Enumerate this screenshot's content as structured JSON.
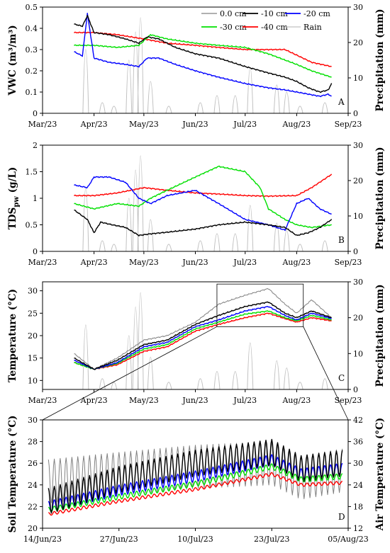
{
  "legend": {
    "position": "top-right of panel A",
    "entries": [
      {
        "label": "0.0 cm",
        "color": "#808080"
      },
      {
        "label": "-10 cm",
        "color": "#000000"
      },
      {
        "label": "-20 cm",
        "color": "#0000ff"
      },
      {
        "label": "-30 cm",
        "color": "#00e000"
      },
      {
        "label": "-40 cm",
        "color": "#ff0000"
      },
      {
        "label": "Rain",
        "color": "#c0c0c0"
      }
    ]
  },
  "chart_data": [
    {
      "panel": "A",
      "type": "line",
      "ylabel": "VWC (m³/m³)",
      "y2label": "Precipitation (mm)",
      "x_ticks": [
        "Mar/23",
        "Apr/23",
        "May/23",
        "Jun/23",
        "Jul/23",
        "Aug/23",
        "Sep/23"
      ],
      "xlim": [
        "2023-03-01",
        "2023-09-01"
      ],
      "ylim": [
        0,
        0.5
      ],
      "yticks": [
        "0",
        "0.1",
        "0.2",
        "0.3",
        "0.4",
        "0.5"
      ],
      "y2lim": [
        0,
        30
      ],
      "y2ticks": [
        "0",
        "10",
        "20",
        "30"
      ],
      "series": [
        {
          "name": "-10 cm",
          "x": [
            "2023-03-20",
            "2023-03-25",
            "2023-03-28",
            "2023-04-01",
            "2023-04-10",
            "2023-04-20",
            "2023-04-28",
            "2023-05-03",
            "2023-05-10",
            "2023-05-20",
            "2023-06-01",
            "2023-06-15",
            "2023-07-01",
            "2023-07-15",
            "2023-07-25",
            "2023-08-01",
            "2023-08-08",
            "2023-08-15",
            "2023-08-20",
            "2023-08-22"
          ],
          "y": [
            0.42,
            0.41,
            0.46,
            0.38,
            0.37,
            0.35,
            0.33,
            0.36,
            0.35,
            0.31,
            0.28,
            0.26,
            0.22,
            0.19,
            0.17,
            0.15,
            0.12,
            0.1,
            0.11,
            0.14
          ]
        },
        {
          "name": "-20 cm",
          "x": [
            "2023-03-20",
            "2023-03-25",
            "2023-03-28",
            "2023-04-01",
            "2023-04-10",
            "2023-04-20",
            "2023-04-28",
            "2023-05-03",
            "2023-05-10",
            "2023-05-20",
            "2023-06-01",
            "2023-06-15",
            "2023-07-01",
            "2023-07-15",
            "2023-07-25",
            "2023-08-01",
            "2023-08-08",
            "2023-08-15",
            "2023-08-20",
            "2023-08-22"
          ],
          "y": [
            0.29,
            0.27,
            0.47,
            0.26,
            0.24,
            0.23,
            0.22,
            0.26,
            0.26,
            0.23,
            0.2,
            0.17,
            0.14,
            0.12,
            0.11,
            0.1,
            0.09,
            0.08,
            0.09,
            0.08
          ]
        },
        {
          "name": "-30 cm",
          "x": [
            "2023-03-20",
            "2023-04-01",
            "2023-04-15",
            "2023-04-28",
            "2023-05-05",
            "2023-05-15",
            "2023-06-01",
            "2023-06-15",
            "2023-07-01",
            "2023-07-15",
            "2023-08-01",
            "2023-08-10",
            "2023-08-22"
          ],
          "y": [
            0.32,
            0.32,
            0.31,
            0.32,
            0.37,
            0.35,
            0.33,
            0.32,
            0.31,
            0.28,
            0.23,
            0.2,
            0.17
          ]
        },
        {
          "name": "-40 cm",
          "x": [
            "2023-03-20",
            "2023-04-01",
            "2023-04-15",
            "2023-05-01",
            "2023-05-15",
            "2023-06-01",
            "2023-06-15",
            "2023-07-01",
            "2023-07-15",
            "2023-07-25",
            "2023-08-10",
            "2023-08-22"
          ],
          "y": [
            0.38,
            0.38,
            0.37,
            0.35,
            0.33,
            0.32,
            0.31,
            0.3,
            0.3,
            0.3,
            0.24,
            0.22
          ]
        }
      ],
      "rain": {
        "x": [
          "2023-03-27",
          "2023-04-06",
          "2023-04-13",
          "2023-04-22",
          "2023-04-26",
          "2023-04-29",
          "2023-05-05",
          "2023-05-16",
          "2023-06-04",
          "2023-06-14",
          "2023-06-25",
          "2023-07-04",
          "2023-07-20",
          "2023-07-26",
          "2023-08-03",
          "2023-08-18"
        ],
        "y": [
          18,
          3,
          2,
          15,
          23,
          27,
          9,
          2,
          3,
          5,
          5,
          13,
          8,
          6,
          2,
          3
        ]
      }
    },
    {
      "panel": "B",
      "type": "line",
      "ylabel": "TDSpw (g/L)",
      "y2label": "Precipitation (mm)",
      "x_ticks": [
        "Mar/23",
        "Apr/23",
        "May/23",
        "Jun/23",
        "Jul/23",
        "Aug/23",
        "Sep/23"
      ],
      "xlim": [
        "2023-03-01",
        "2023-09-01"
      ],
      "ylim": [
        0,
        2
      ],
      "yticks": [
        "0",
        "0.5",
        "1",
        "1.5",
        "2"
      ],
      "y2lim": [
        0,
        30
      ],
      "y2ticks": [
        "0",
        "10",
        "20",
        "30"
      ],
      "series": [
        {
          "name": "-10 cm",
          "x": [
            "2023-03-20",
            "2023-03-28",
            "2023-04-01",
            "2023-04-05",
            "2023-04-12",
            "2023-04-20",
            "2023-04-28",
            "2023-05-05",
            "2023-05-15",
            "2023-06-01",
            "2023-06-15",
            "2023-07-01",
            "2023-07-15",
            "2023-07-25",
            "2023-08-01",
            "2023-08-08",
            "2023-08-15",
            "2023-08-22"
          ],
          "y": [
            0.78,
            0.6,
            0.35,
            0.55,
            0.5,
            0.45,
            0.3,
            0.33,
            0.36,
            0.42,
            0.5,
            0.55,
            0.5,
            0.45,
            0.3,
            0.35,
            0.45,
            0.6
          ]
        },
        {
          "name": "-20 cm",
          "x": [
            "2023-03-20",
            "2023-03-28",
            "2023-04-01",
            "2023-04-10",
            "2023-04-20",
            "2023-04-28",
            "2023-05-05",
            "2023-05-15",
            "2023-06-01",
            "2023-06-15",
            "2023-07-01",
            "2023-07-15",
            "2023-07-25",
            "2023-08-01",
            "2023-08-08",
            "2023-08-15",
            "2023-08-22"
          ],
          "y": [
            1.25,
            1.2,
            1.4,
            1.4,
            1.3,
            1.0,
            0.9,
            1.05,
            1.15,
            0.9,
            0.6,
            0.5,
            0.4,
            0.9,
            1.0,
            0.8,
            0.7
          ]
        },
        {
          "name": "-30 cm",
          "x": [
            "2023-03-20",
            "2023-04-01",
            "2023-04-15",
            "2023-04-28",
            "2023-05-05",
            "2023-05-15",
            "2023-06-01",
            "2023-06-15",
            "2023-07-01",
            "2023-07-10",
            "2023-07-15",
            "2023-07-25",
            "2023-08-01",
            "2023-08-10",
            "2023-08-22"
          ],
          "y": [
            0.9,
            0.8,
            0.9,
            0.85,
            1.0,
            1.15,
            1.4,
            1.6,
            1.5,
            1.2,
            0.8,
            0.6,
            0.5,
            0.45,
            0.5
          ]
        },
        {
          "name": "-40 cm",
          "x": [
            "2023-03-20",
            "2023-04-01",
            "2023-04-15",
            "2023-05-01",
            "2023-05-15",
            "2023-06-01",
            "2023-06-15",
            "2023-07-01",
            "2023-07-15",
            "2023-08-01",
            "2023-08-10",
            "2023-08-22"
          ],
          "y": [
            1.05,
            1.05,
            1.1,
            1.2,
            1.15,
            1.1,
            1.08,
            1.05,
            1.04,
            1.05,
            1.2,
            1.45
          ]
        }
      ],
      "rain": {
        "x": [
          "2023-03-27",
          "2023-04-06",
          "2023-04-13",
          "2023-04-22",
          "2023-04-26",
          "2023-04-29",
          "2023-05-05",
          "2023-05-16",
          "2023-06-04",
          "2023-06-14",
          "2023-06-25",
          "2023-07-04",
          "2023-07-20",
          "2023-07-26",
          "2023-08-03",
          "2023-08-18"
        ],
        "y": [
          18,
          3,
          2,
          15,
          23,
          27,
          9,
          2,
          3,
          5,
          5,
          13,
          8,
          6,
          2,
          3
        ]
      }
    },
    {
      "panel": "C",
      "type": "line",
      "ylabel": "Temperature (°C)",
      "y2label": "Precipitation (mm)",
      "x_ticks": [
        "Mar/23",
        "Apr/23",
        "May/23",
        "Jun/23",
        "Jul/23",
        "Aug/23",
        "Sep/23"
      ],
      "xlim": [
        "2023-03-01",
        "2023-09-01"
      ],
      "ylim": [
        8,
        32
      ],
      "yticks": [
        "10",
        "15",
        "20",
        "25",
        "30"
      ],
      "y2lim": [
        0,
        30
      ],
      "y2ticks": [
        "0",
        "10",
        "20",
        "30"
      ],
      "series": [
        {
          "name": "0.0 cm",
          "x": [
            "2023-03-20",
            "2023-04-01",
            "2023-04-15",
            "2023-05-01",
            "2023-05-15",
            "2023-06-01",
            "2023-06-15",
            "2023-07-01",
            "2023-07-15",
            "2023-07-25",
            "2023-08-01",
            "2023-08-10",
            "2023-08-22"
          ],
          "y": [
            16,
            12.5,
            15,
            19,
            20,
            23,
            27,
            29,
            30.5,
            27,
            25,
            28,
            24
          ]
        },
        {
          "name": "-10 cm",
          "x": [
            "2023-03-20",
            "2023-04-01",
            "2023-04-15",
            "2023-05-01",
            "2023-05-15",
            "2023-06-01",
            "2023-06-15",
            "2023-07-01",
            "2023-07-15",
            "2023-07-25",
            "2023-08-01",
            "2023-08-10",
            "2023-08-22"
          ],
          "y": [
            15,
            12.5,
            14.5,
            18,
            19,
            22.5,
            24.5,
            26.5,
            27.5,
            25,
            24,
            25.5,
            24
          ]
        },
        {
          "name": "-20 cm",
          "x": [
            "2023-03-20",
            "2023-04-01",
            "2023-04-15",
            "2023-05-01",
            "2023-05-15",
            "2023-06-01",
            "2023-06-15",
            "2023-07-01",
            "2023-07-15",
            "2023-07-25",
            "2023-08-01",
            "2023-08-10",
            "2023-08-22"
          ],
          "y": [
            14.5,
            12.5,
            14,
            17.5,
            18.5,
            22,
            23.5,
            25.5,
            26.5,
            24.5,
            23.5,
            25,
            23.8
          ]
        },
        {
          "name": "-30 cm",
          "x": [
            "2023-03-20",
            "2023-04-01",
            "2023-04-15",
            "2023-05-01",
            "2023-05-15",
            "2023-06-01",
            "2023-06-15",
            "2023-07-01",
            "2023-07-15",
            "2023-07-25",
            "2023-08-01",
            "2023-08-10",
            "2023-08-22"
          ],
          "y": [
            14,
            12.5,
            13.8,
            17,
            18,
            21.5,
            23,
            24.8,
            25.5,
            24,
            23.3,
            24.5,
            23.5
          ]
        },
        {
          "name": "-40 cm",
          "x": [
            "2023-03-20",
            "2023-04-01",
            "2023-04-15",
            "2023-05-01",
            "2023-05-15",
            "2023-06-01",
            "2023-06-15",
            "2023-07-01",
            "2023-07-15",
            "2023-07-25",
            "2023-08-01",
            "2023-08-10",
            "2023-08-22"
          ],
          "y": [
            14,
            12.5,
            13.5,
            16.5,
            17.5,
            21,
            22.5,
            24,
            25,
            23.8,
            23,
            24,
            23.3
          ]
        }
      ],
      "rain": {
        "x": [
          "2023-03-27",
          "2023-04-06",
          "2023-04-13",
          "2023-04-22",
          "2023-04-26",
          "2023-04-29",
          "2023-05-05",
          "2023-05-16",
          "2023-06-04",
          "2023-06-14",
          "2023-06-25",
          "2023-07-04",
          "2023-07-20",
          "2023-07-26",
          "2023-08-03",
          "2023-08-18"
        ],
        "y": [
          18,
          3,
          2,
          15,
          23,
          27,
          9,
          2,
          3,
          5,
          5,
          13,
          8,
          6,
          2,
          3
        ]
      }
    },
    {
      "panel": "D",
      "type": "line",
      "ylabel": "Soil Temperature (°C)",
      "y2label": "Air Temperature (°C)",
      "x_ticks": [
        "14/Jun/23",
        "27/Jun/23",
        "10/Jul/23",
        "23/Jul/23",
        "05/Aug/23"
      ],
      "xlim": [
        "2023-06-14",
        "2023-08-05"
      ],
      "ylim": [
        20,
        30
      ],
      "yticks": [
        "20",
        "22",
        "24",
        "26",
        "28",
        "30"
      ],
      "y2lim": [
        12,
        42
      ],
      "y2ticks": [
        "12",
        "18",
        "24",
        "30",
        "36",
        "42"
      ],
      "series": [
        {
          "name": "-10 cm",
          "x": [
            "2023-06-15",
            "2023-06-27",
            "2023-07-10",
            "2023-07-23",
            "2023-07-28",
            "2023-08-04"
          ],
          "y": [
            22.5,
            24.5,
            26.0,
            27.0,
            25.5,
            26.0
          ],
          "amplitude": 1.2
        },
        {
          "name": "-20 cm",
          "x": [
            "2023-06-15",
            "2023-06-27",
            "2023-07-10",
            "2023-07-23",
            "2023-07-28",
            "2023-08-04"
          ],
          "y": [
            22.0,
            23.5,
            24.8,
            26.3,
            25.0,
            25.5
          ],
          "amplitude": 0.5
        },
        {
          "name": "-30 cm",
          "x": [
            "2023-06-15",
            "2023-06-27",
            "2023-07-10",
            "2023-07-23",
            "2023-07-28",
            "2023-08-04"
          ],
          "y": [
            21.7,
            22.9,
            24.1,
            25.7,
            24.5,
            24.8
          ],
          "amplitude": 0.25
        },
        {
          "name": "-40 cm",
          "x": [
            "2023-06-15",
            "2023-06-27",
            "2023-07-10",
            "2023-07-23",
            "2023-07-28",
            "2023-08-04"
          ],
          "y": [
            21.3,
            22.5,
            23.6,
            25.0,
            24.0,
            24.2
          ],
          "amplitude": 0.15
        },
        {
          "name": "0.0 cm",
          "axis": "right",
          "x": [
            "2023-06-15",
            "2023-06-27",
            "2023-07-10",
            "2023-07-23",
            "2023-07-28",
            "2023-08-04"
          ],
          "y": [
            25,
            27,
            29,
            30,
            26,
            28
          ],
          "amplitude": 6
        }
      ]
    }
  ]
}
